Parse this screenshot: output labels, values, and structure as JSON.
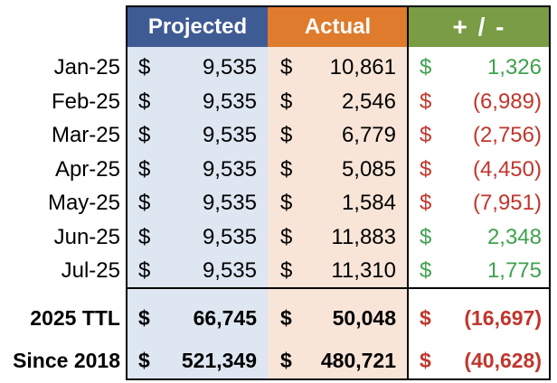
{
  "headers": {
    "projected": "Projected",
    "actual": "Actual",
    "diff": "+ / -"
  },
  "currency_symbol": "$",
  "colors": {
    "projected_header": "#3f5b94",
    "actual_header": "#df7b2d",
    "diff_header": "#7a9c45",
    "projected_band": "#dde6f1",
    "actual_band": "#f9e5d8",
    "positive": "#3fa14e",
    "negative": "#c0362c"
  },
  "months": [
    {
      "label": "Jan-25",
      "projected": "9,535",
      "actual": "10,861",
      "diff": "1,326",
      "sign": "positive"
    },
    {
      "label": "Feb-25",
      "projected": "9,535",
      "actual": "2,546",
      "diff": "(6,989)",
      "sign": "negative"
    },
    {
      "label": "Mar-25",
      "projected": "9,535",
      "actual": "6,779",
      "diff": "(2,756)",
      "sign": "negative"
    },
    {
      "label": "Apr-25",
      "projected": "9,535",
      "actual": "5,085",
      "diff": "(4,450)",
      "sign": "negative"
    },
    {
      "label": "May-25",
      "projected": "9,535",
      "actual": "1,584",
      "diff": "(7,951)",
      "sign": "negative"
    },
    {
      "label": "Jun-25",
      "projected": "9,535",
      "actual": "11,883",
      "diff": "2,348",
      "sign": "positive"
    },
    {
      "label": "Jul-25",
      "projected": "9,535",
      "actual": "11,310",
      "diff": "1,775",
      "sign": "positive"
    }
  ],
  "totals": [
    {
      "label": "2025 TTL",
      "projected": "66,745",
      "actual": "50,048",
      "diff": "(16,697)",
      "sign": "negative"
    },
    {
      "label": "Since 2018",
      "projected": "521,349",
      "actual": "480,721",
      "diff": "(40,628)",
      "sign": "negative"
    }
  ]
}
